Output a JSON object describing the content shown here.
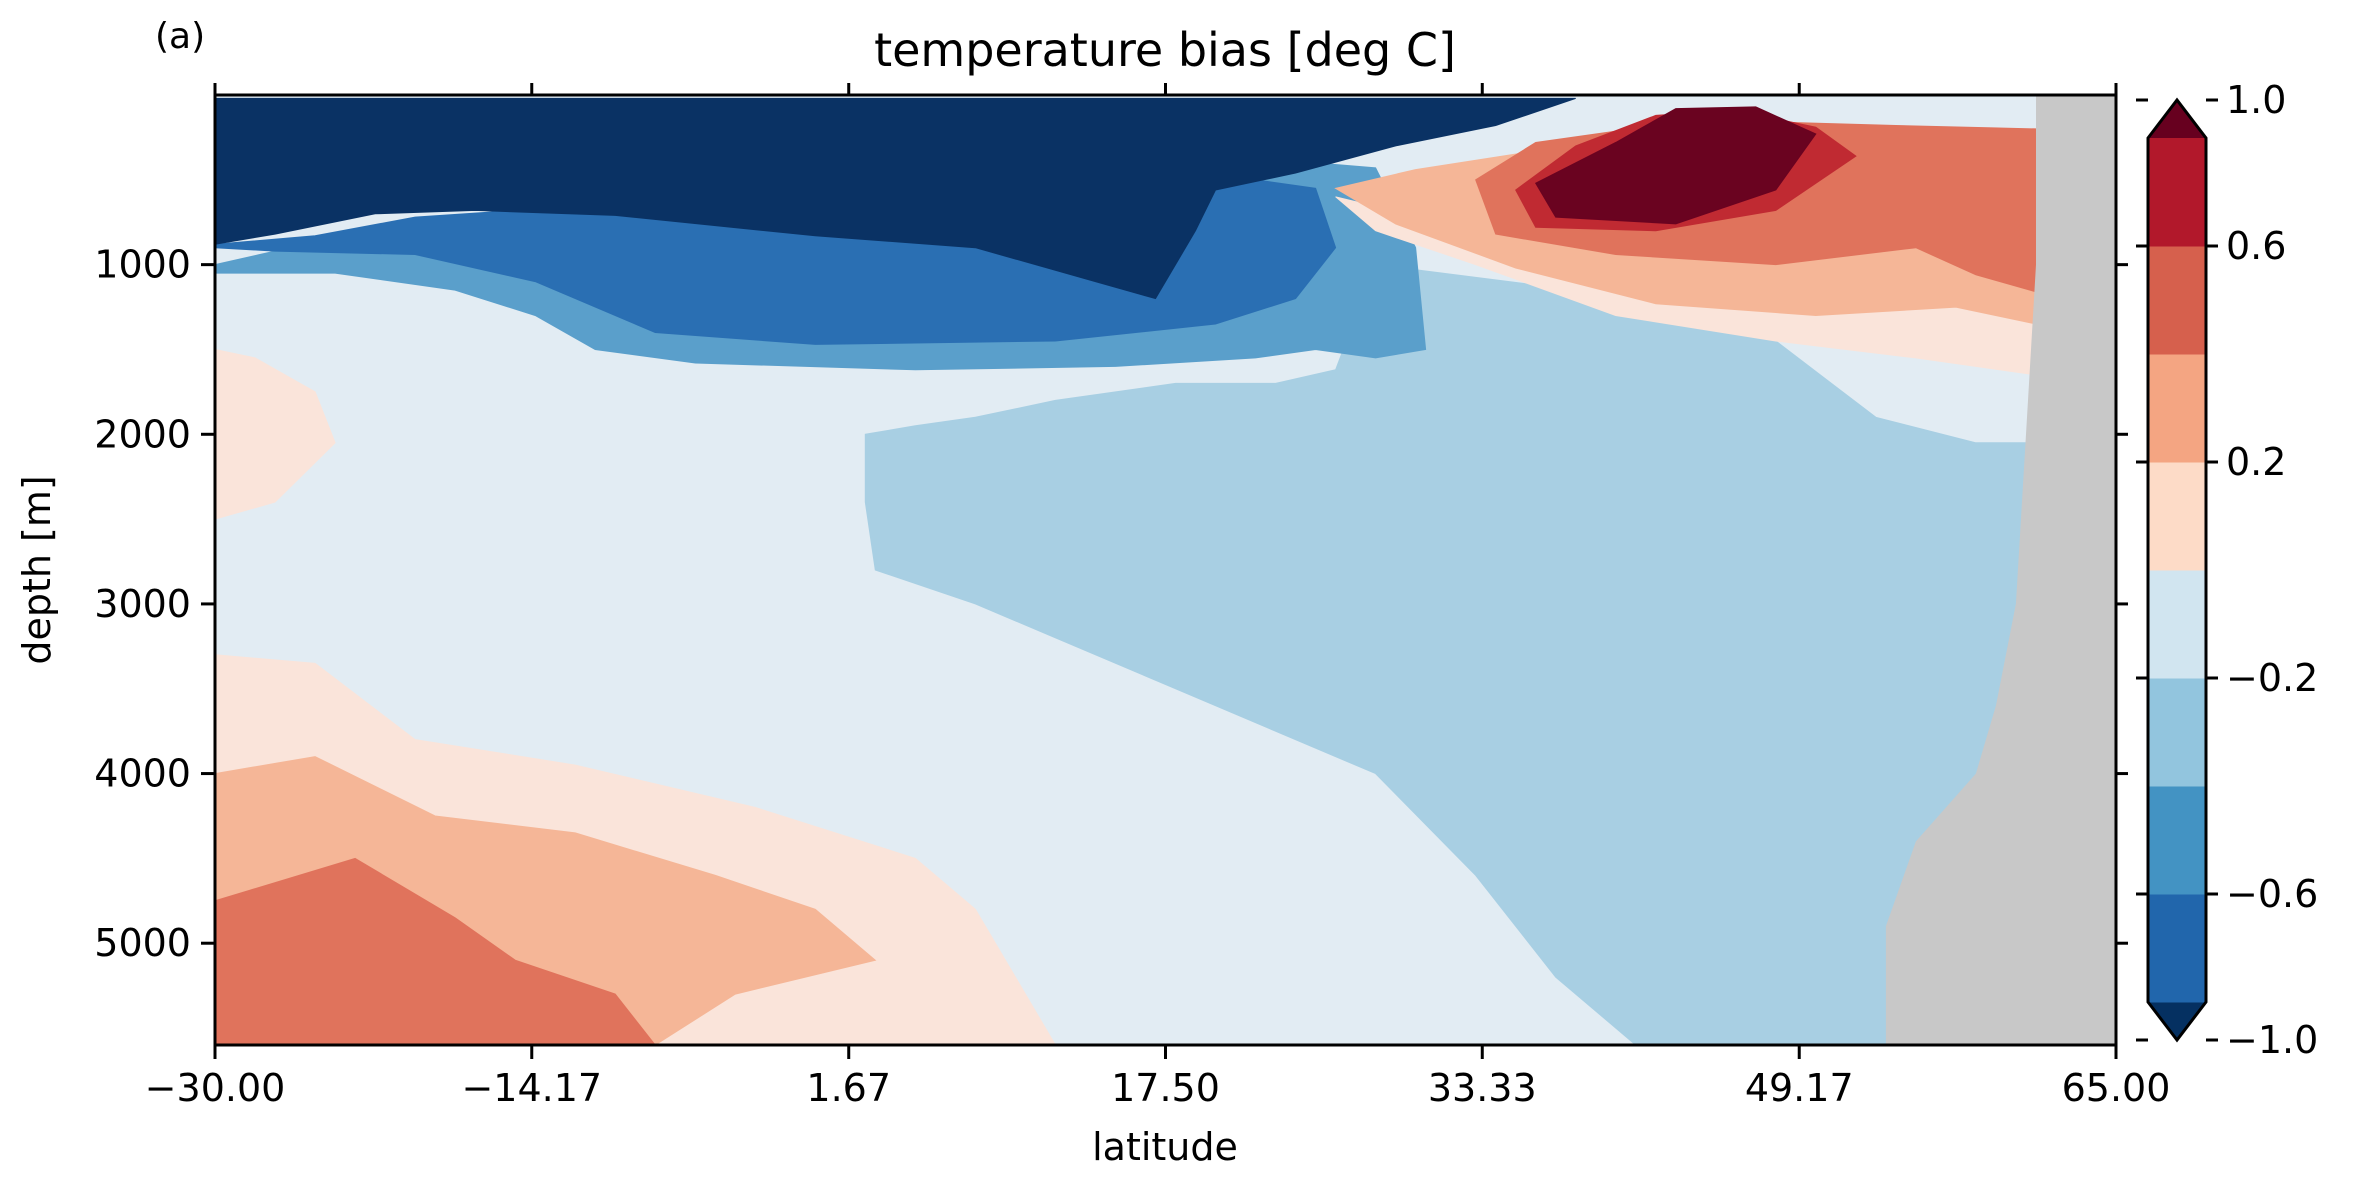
{
  "panel_label": "(a)",
  "chart_data": {
    "type": "contourf",
    "title": "temperature bias [deg C]",
    "xlabel": "latitude",
    "ylabel": "depth [m]",
    "xlim": [
      -30.0,
      65.0
    ],
    "ylim": [
      5600,
      0
    ],
    "y_inverted": true,
    "x_ticks": [
      -30.0,
      -14.17,
      1.67,
      17.5,
      33.33,
      49.17,
      65.0
    ],
    "x_tick_labels": [
      "−30.00",
      "−14.17",
      "1.67",
      "17.50",
      "33.33",
      "49.17",
      "65.00"
    ],
    "y_ticks": [
      1000,
      2000,
      3000,
      4000,
      5000
    ],
    "y_tick_labels": [
      "1000",
      "2000",
      "3000",
      "4000",
      "5000"
    ],
    "land_mask_color": "#c8c8c8",
    "colormap": "RdBu_r",
    "colorbar": {
      "levels": [
        -1.0,
        -0.8,
        -0.6,
        -0.4,
        -0.2,
        0.0,
        0.2,
        0.4,
        0.6,
        0.8,
        1.0
      ],
      "extend": "both",
      "colors": [
        "#053061",
        "#2166ac",
        "#4393c3",
        "#92c5de",
        "#d1e5f0",
        "#fddbc7",
        "#f4a582",
        "#d6604d",
        "#b2182b",
        "#67001f"
      ],
      "tick_values": [
        -1.0,
        -0.6,
        -0.2,
        0.2,
        0.6,
        1.0
      ],
      "tick_labels": [
        "−1.0",
        "−0.6",
        "−0.2",
        "0.2",
        "0.6",
        "1.0"
      ]
    },
    "regions": [
      {
        "value": -0.1,
        "color": "#e2ecf3",
        "points": [
          [
            -30,
            0
          ],
          [
            65,
            0
          ],
          [
            65,
            5600
          ],
          [
            -30,
            5600
          ]
        ]
      },
      {
        "value": -0.3,
        "color": "#a8cfe3",
        "points": [
          [
            2.5,
            2000
          ],
          [
            5,
            1950
          ],
          [
            8,
            1900
          ],
          [
            12,
            1800
          ],
          [
            18,
            1700
          ],
          [
            23,
            1700
          ],
          [
            26,
            1620
          ],
          [
            28,
            1000
          ],
          [
            38,
            1150
          ],
          [
            48,
            1450
          ],
          [
            53,
            1900
          ],
          [
            58,
            2050
          ],
          [
            61,
            2050
          ],
          [
            61,
            2800
          ],
          [
            60,
            4000
          ],
          [
            58,
            5200
          ],
          [
            57,
            5600
          ],
          [
            41,
            5600
          ],
          [
            37,
            5200
          ],
          [
            33,
            4600
          ],
          [
            28,
            4000
          ],
          [
            20,
            3600
          ],
          [
            14,
            3300
          ],
          [
            8,
            3000
          ],
          [
            3,
            2800
          ],
          [
            2.5,
            2400
          ]
        ]
      },
      {
        "value": -0.5,
        "color": "#5a9fcb",
        "points": [
          [
            -30,
            1000
          ],
          [
            -27,
            920
          ],
          [
            -20,
            850
          ],
          [
            -14,
            820
          ],
          [
            0,
            800
          ],
          [
            12,
            720
          ],
          [
            20,
            500
          ],
          [
            25,
            400
          ],
          [
            28,
            430
          ],
          [
            30,
            900
          ],
          [
            30.5,
            1500
          ],
          [
            28,
            1550
          ],
          [
            25,
            1500
          ],
          [
            22,
            1550
          ],
          [
            15,
            1600
          ],
          [
            5,
            1620
          ],
          [
            -6,
            1580
          ],
          [
            -11,
            1500
          ],
          [
            -14,
            1300
          ],
          [
            -18,
            1150
          ],
          [
            -24,
            1050
          ],
          [
            -30,
            1050
          ]
        ]
      },
      {
        "value": -0.7,
        "color": "#2a6fb3",
        "points": [
          [
            -30,
            880
          ],
          [
            -25,
            830
          ],
          [
            -20,
            720
          ],
          [
            -15,
            680
          ],
          [
            -5,
            650
          ],
          [
            8,
            600
          ],
          [
            16,
            580
          ],
          [
            22,
            500
          ],
          [
            25,
            550
          ],
          [
            26,
            900
          ],
          [
            24,
            1200
          ],
          [
            20,
            1350
          ],
          [
            12,
            1450
          ],
          [
            0,
            1470
          ],
          [
            -8,
            1400
          ],
          [
            -14,
            1100
          ],
          [
            -20,
            940
          ],
          [
            -27,
            920
          ],
          [
            -30,
            900
          ]
        ]
      },
      {
        "value": -0.9,
        "color": "#0a3264",
        "points": [
          [
            -30,
            20
          ],
          [
            38,
            20
          ],
          [
            34,
            180
          ],
          [
            29,
            300
          ],
          [
            24,
            460
          ],
          [
            20,
            560
          ],
          [
            19,
            800
          ],
          [
            17,
            1200
          ],
          [
            14,
            1100
          ],
          [
            8,
            900
          ],
          [
            0,
            830
          ],
          [
            -10,
            710
          ],
          [
            -17,
            680
          ],
          [
            -22,
            700
          ],
          [
            -27,
            820
          ],
          [
            -30,
            880
          ]
        ]
      },
      {
        "value": 0.1,
        "color": "#fae4da",
        "points": [
          [
            26,
            600
          ],
          [
            33,
            800
          ],
          [
            40,
            1000
          ],
          [
            48,
            1000
          ],
          [
            55,
            900
          ],
          [
            61,
            860
          ],
          [
            61,
            1650
          ],
          [
            55,
            1550
          ],
          [
            48,
            1450
          ],
          [
            40,
            1300
          ],
          [
            33,
            1000
          ],
          [
            28,
            800
          ]
        ]
      },
      {
        "value": 0.3,
        "color": "#f5b697",
        "points": [
          [
            26,
            550
          ],
          [
            30,
            440
          ],
          [
            36,
            330
          ],
          [
            46,
            330
          ],
          [
            56,
            300
          ],
          [
            61,
            280
          ],
          [
            61,
            1350
          ],
          [
            57,
            1250
          ],
          [
            50,
            1300
          ],
          [
            42,
            1230
          ],
          [
            35,
            1020
          ],
          [
            29,
            760
          ]
        ]
      },
      {
        "value": 0.5,
        "color": "#e0735c",
        "points": [
          [
            33,
            500
          ],
          [
            36,
            280
          ],
          [
            42,
            180
          ],
          [
            48,
            160
          ],
          [
            54,
            180
          ],
          [
            61,
            200
          ],
          [
            61,
            1160
          ],
          [
            58,
            1060
          ],
          [
            55,
            900
          ],
          [
            48,
            1000
          ],
          [
            40,
            940
          ],
          [
            34,
            820
          ]
        ]
      },
      {
        "value": 0.7,
        "color": "#c02a32",
        "points": [
          [
            35,
            560
          ],
          [
            38,
            300
          ],
          [
            42,
            120
          ],
          [
            46,
            90
          ],
          [
            50,
            190
          ],
          [
            52,
            360
          ],
          [
            48,
            680
          ],
          [
            42,
            800
          ],
          [
            36,
            780
          ]
        ]
      },
      {
        "value": 0.9,
        "color": "#6a0320",
        "points": [
          [
            36,
            520
          ],
          [
            40,
            280
          ],
          [
            43,
            80
          ],
          [
            47,
            70
          ],
          [
            50,
            230
          ],
          [
            48,
            560
          ],
          [
            43,
            760
          ],
          [
            37,
            720
          ]
        ]
      },
      {
        "value": 0.1,
        "color": "#fae4da",
        "points": [
          [
            -30,
            1500
          ],
          [
            -28,
            1550
          ],
          [
            -25,
            1750
          ],
          [
            -24,
            2050
          ],
          [
            -27,
            2400
          ],
          [
            -30,
            2500
          ]
        ]
      },
      {
        "value": 0.1,
        "color": "#fae4da",
        "points": [
          [
            -30,
            3300
          ],
          [
            -25,
            3350
          ],
          [
            -20,
            3800
          ],
          [
            -12,
            3950
          ],
          [
            -3,
            4200
          ],
          [
            5,
            4500
          ],
          [
            8,
            4800
          ],
          [
            12,
            5600
          ],
          [
            -30,
            5600
          ]
        ]
      },
      {
        "value": 0.3,
        "color": "#f5b697",
        "points": [
          [
            -30,
            4000
          ],
          [
            -25,
            3900
          ],
          [
            -19,
            4250
          ],
          [
            -12,
            4350
          ],
          [
            -5,
            4600
          ],
          [
            0,
            4800
          ],
          [
            3,
            5100
          ],
          [
            -4,
            5300
          ],
          [
            -8,
            5600
          ],
          [
            -30,
            5600
          ]
        ]
      },
      {
        "value": 0.5,
        "color": "#e0735c",
        "points": [
          [
            -30,
            4750
          ],
          [
            -23,
            4500
          ],
          [
            -18,
            4850
          ],
          [
            -15,
            5100
          ],
          [
            -10,
            5300
          ],
          [
            -8,
            5600
          ],
          [
            -30,
            5600
          ]
        ]
      }
    ],
    "land_mask": [
      [
        61,
        0
      ],
      [
        65,
        0
      ],
      [
        65,
        5600
      ],
      [
        53.5,
        5600
      ],
      [
        53.5,
        4900
      ],
      [
        55,
        4400
      ],
      [
        58,
        4000
      ],
      [
        59,
        3600
      ],
      [
        60,
        3000
      ],
      [
        60.5,
        2000
      ],
      [
        61,
        1000
      ],
      [
        61,
        0
      ]
    ]
  }
}
